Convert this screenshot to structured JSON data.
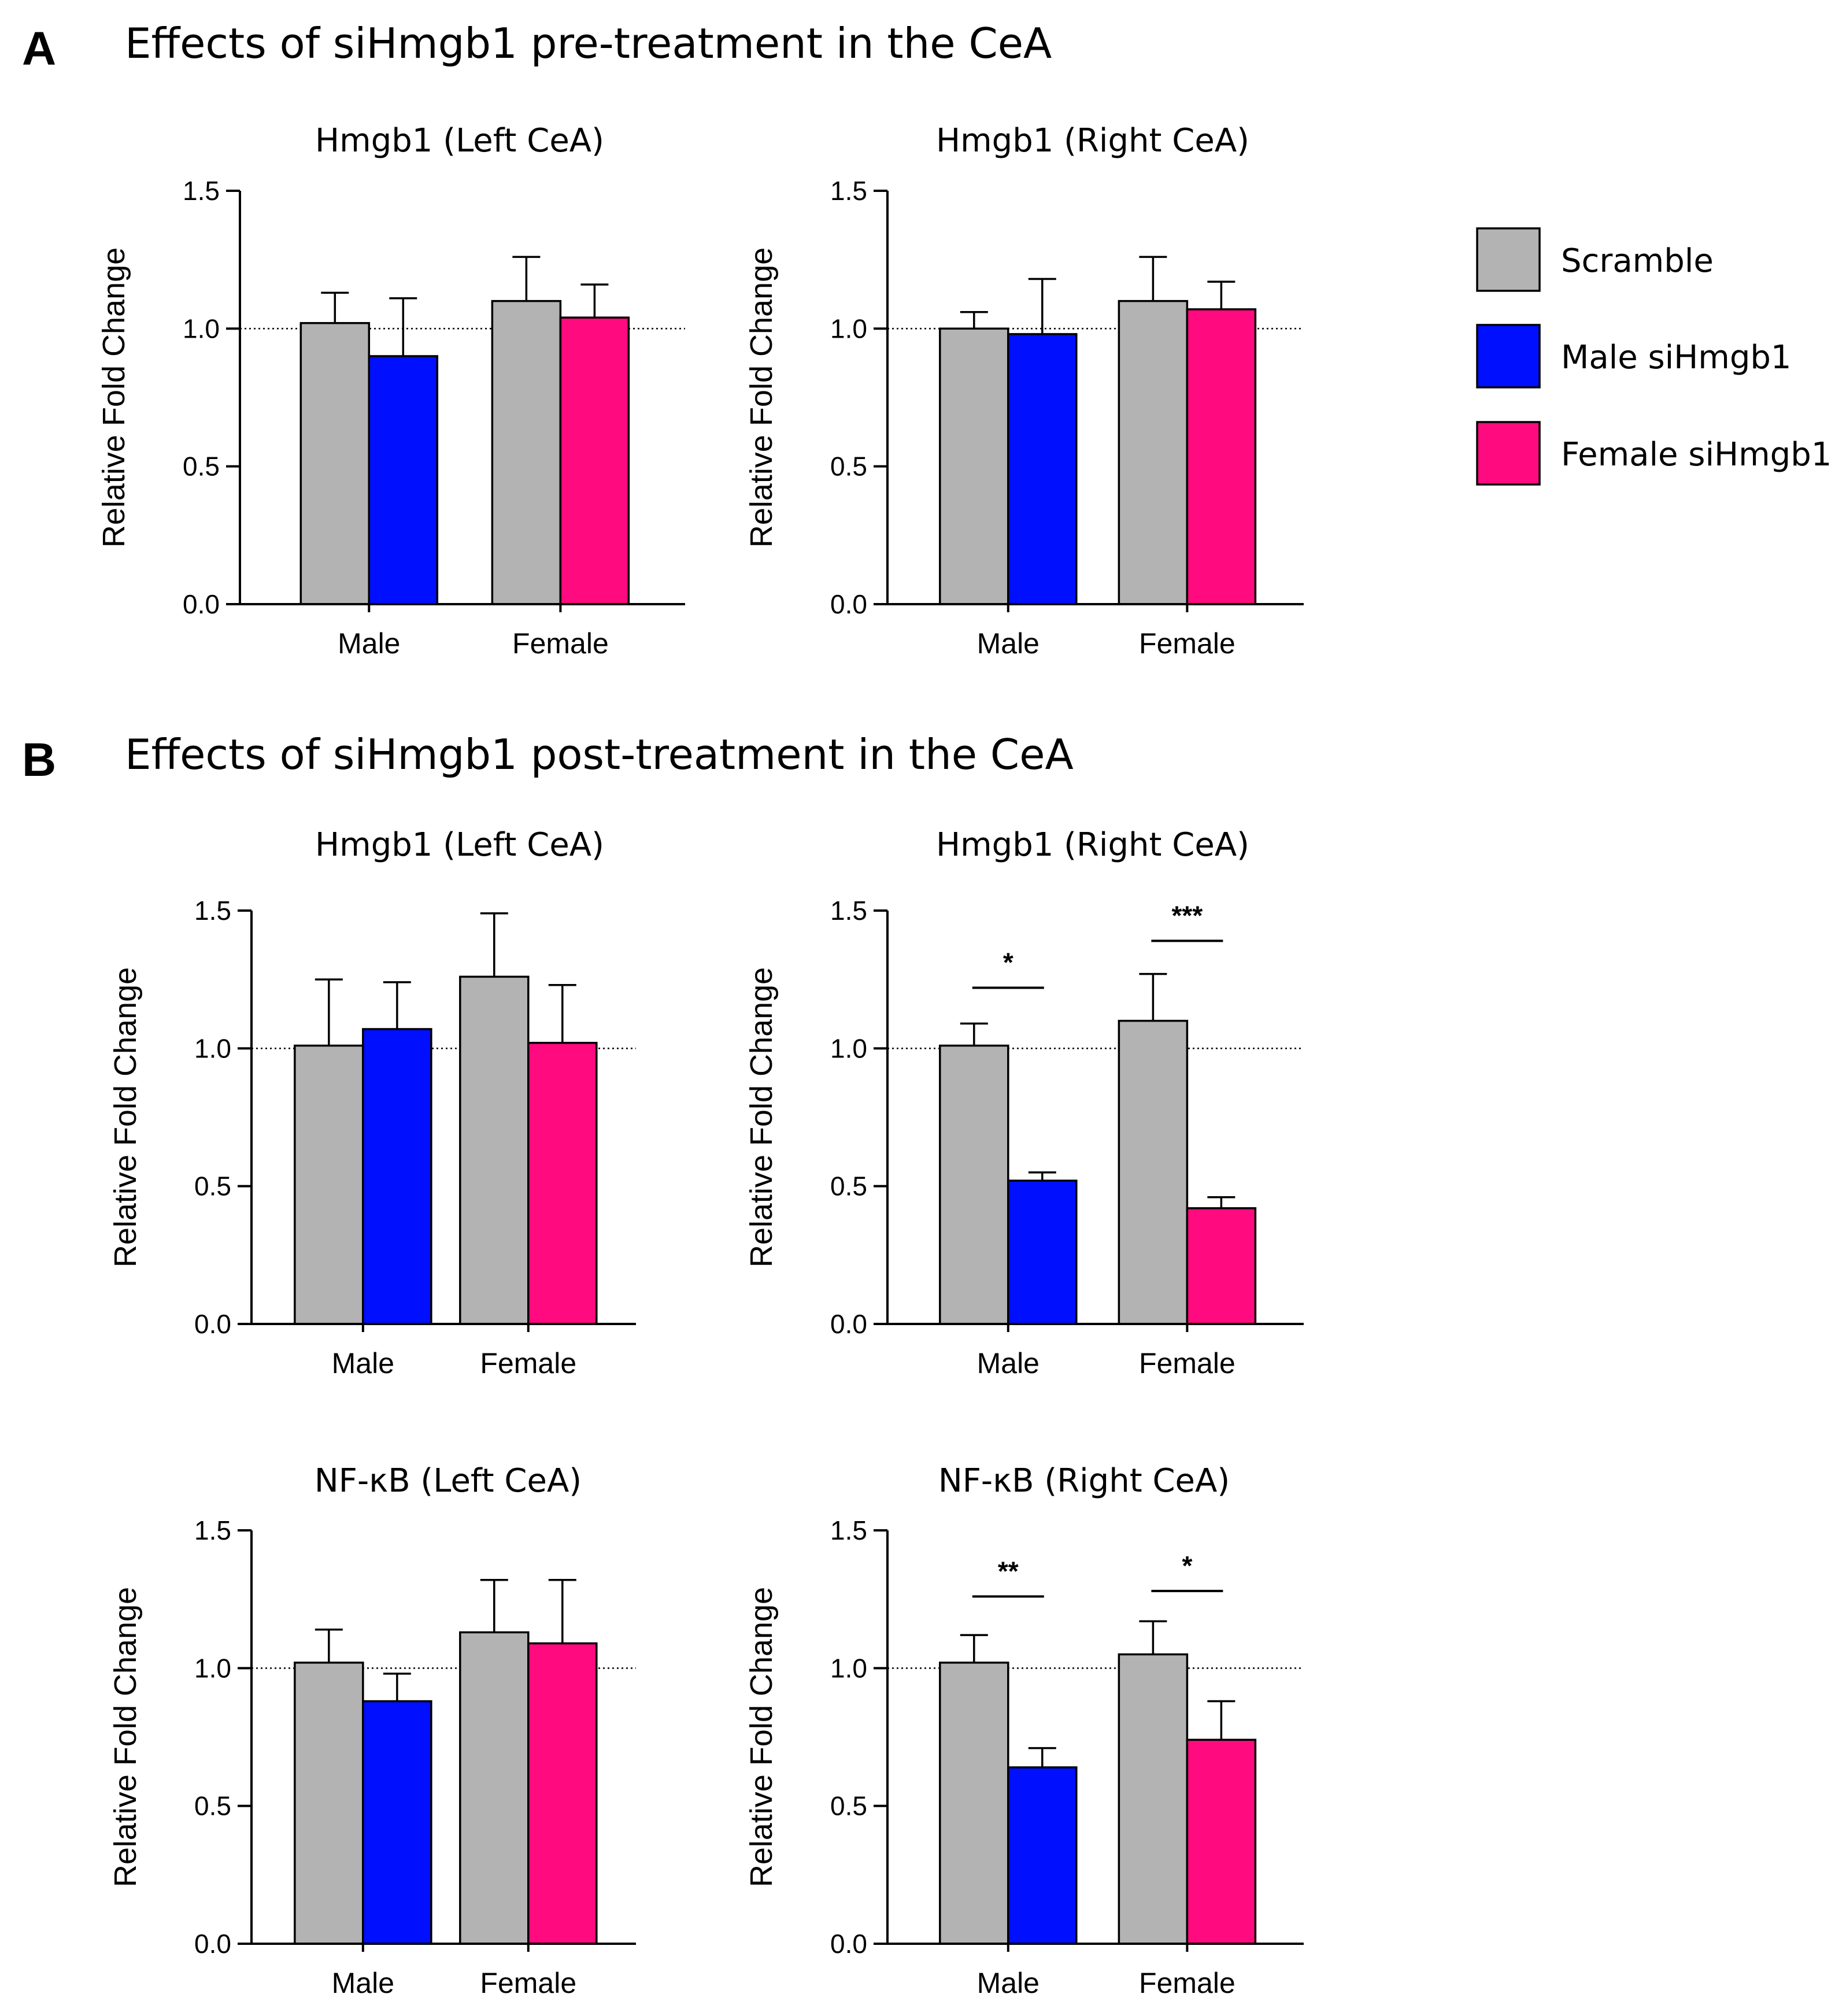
{
  "colors": {
    "scramble": "#b3b3b3",
    "male_sihmgb1": "#0010ff",
    "female_sihmgb1": "#ff0a7f"
  },
  "sections": {
    "A": {
      "letter": "A",
      "title": "Effects of siHmgb1 pre-treatment in the CeA"
    },
    "B": {
      "letter": "B",
      "title": "Effects of siHmgb1 post-treatment in the CeA"
    }
  },
  "legend": [
    {
      "label": "Scramble",
      "color_key": "scramble"
    },
    {
      "label": "Male siHmgb1",
      "color_key": "male_sihmgb1"
    },
    {
      "label": "Female siHmgb1",
      "color_key": "female_sihmgb1"
    }
  ],
  "chart_data": [
    {
      "id": "A-left",
      "type": "bar",
      "title": "Hmgb1 (Left CeA)",
      "ylabel": "Relative Fold Change",
      "xlabel": "",
      "ylim": [
        0,
        1.5
      ],
      "yticks": [
        "0.0",
        "0.5",
        "1.0",
        "1.5"
      ],
      "reference_line": 1.0,
      "categories": [
        "Male",
        "Female"
      ],
      "groups": [
        {
          "bars": [
            {
              "series": "Scramble",
              "color_key": "scramble",
              "value": 1.02,
              "error": 0.11
            },
            {
              "series": "siHmgb1",
              "color_key": "male_sihmgb1",
              "value": 0.9,
              "error": 0.21
            }
          ]
        },
        {
          "bars": [
            {
              "series": "Scramble",
              "color_key": "scramble",
              "value": 1.1,
              "error": 0.16
            },
            {
              "series": "siHmgb1",
              "color_key": "female_sihmgb1",
              "value": 1.04,
              "error": 0.12
            }
          ]
        }
      ],
      "significance": []
    },
    {
      "id": "A-right",
      "type": "bar",
      "title": "Hmgb1 (Right CeA)",
      "ylabel": "Relative Fold Change",
      "xlabel": "",
      "ylim": [
        0,
        1.5
      ],
      "yticks": [
        "0.0",
        "0.5",
        "1.0",
        "1.5"
      ],
      "reference_line": 1.0,
      "categories": [
        "Male",
        "Female"
      ],
      "groups": [
        {
          "bars": [
            {
              "series": "Scramble",
              "color_key": "scramble",
              "value": 1.0,
              "error": 0.06
            },
            {
              "series": "siHmgb1",
              "color_key": "male_sihmgb1",
              "value": 0.98,
              "error": 0.2
            }
          ]
        },
        {
          "bars": [
            {
              "series": "Scramble",
              "color_key": "scramble",
              "value": 1.1,
              "error": 0.16
            },
            {
              "series": "siHmgb1",
              "color_key": "female_sihmgb1",
              "value": 1.07,
              "error": 0.1
            }
          ]
        }
      ],
      "significance": []
    },
    {
      "id": "B-hmgb1-left",
      "type": "bar",
      "title": "Hmgb1 (Left CeA)",
      "ylabel": "Relative Fold Change",
      "xlabel": "",
      "ylim": [
        0,
        1.5
      ],
      "yticks": [
        "0.0",
        "0.5",
        "1.0",
        "1.5"
      ],
      "reference_line": 1.0,
      "categories": [
        "Male",
        "Female"
      ],
      "groups": [
        {
          "bars": [
            {
              "series": "Scramble",
              "color_key": "scramble",
              "value": 1.01,
              "error": 0.24
            },
            {
              "series": "siHmgb1",
              "color_key": "male_sihmgb1",
              "value": 1.07,
              "error": 0.17
            }
          ]
        },
        {
          "bars": [
            {
              "series": "Scramble",
              "color_key": "scramble",
              "value": 1.26,
              "error": 0.23
            },
            {
              "series": "siHmgb1",
              "color_key": "female_sihmgb1",
              "value": 1.02,
              "error": 0.21
            }
          ]
        }
      ],
      "significance": []
    },
    {
      "id": "B-hmgb1-right",
      "type": "bar",
      "title": "Hmgb1 (Right CeA)",
      "ylabel": "Relative Fold Change",
      "xlabel": "",
      "ylim": [
        0,
        1.5
      ],
      "yticks": [
        "0.0",
        "0.5",
        "1.0",
        "1.5"
      ],
      "reference_line": 1.0,
      "categories": [
        "Male",
        "Female"
      ],
      "groups": [
        {
          "bars": [
            {
              "series": "Scramble",
              "color_key": "scramble",
              "value": 1.01,
              "error": 0.08
            },
            {
              "series": "siHmgb1",
              "color_key": "male_sihmgb1",
              "value": 0.52,
              "error": 0.03
            }
          ]
        },
        {
          "bars": [
            {
              "series": "Scramble",
              "color_key": "scramble",
              "value": 1.1,
              "error": 0.17
            },
            {
              "series": "siHmgb1",
              "color_key": "female_sihmgb1",
              "value": 0.42,
              "error": 0.04
            }
          ]
        }
      ],
      "significance": [
        {
          "group": 0,
          "label": "*",
          "y": 1.22
        },
        {
          "group": 1,
          "label": "***",
          "y": 1.39
        }
      ]
    },
    {
      "id": "B-nfkb-left",
      "type": "bar",
      "title": "NF-κB (Left CeA)",
      "ylabel": "Relative Fold Change",
      "xlabel": "",
      "ylim": [
        0,
        1.5
      ],
      "yticks": [
        "0.0",
        "0.5",
        "1.0",
        "1.5"
      ],
      "reference_line": 1.0,
      "categories": [
        "Male",
        "Female"
      ],
      "groups": [
        {
          "bars": [
            {
              "series": "Scramble",
              "color_key": "scramble",
              "value": 1.02,
              "error": 0.12
            },
            {
              "series": "siHmgb1",
              "color_key": "male_sihmgb1",
              "value": 0.88,
              "error": 0.1
            }
          ]
        },
        {
          "bars": [
            {
              "series": "Scramble",
              "color_key": "scramble",
              "value": 1.13,
              "error": 0.19
            },
            {
              "series": "siHmgb1",
              "color_key": "female_sihmgb1",
              "value": 1.09,
              "error": 0.23
            }
          ]
        }
      ],
      "significance": []
    },
    {
      "id": "B-nfkb-right",
      "type": "bar",
      "title": "NF-κB (Right CeA)",
      "ylabel": "Relative Fold Change",
      "xlabel": "",
      "ylim": [
        0,
        1.5
      ],
      "yticks": [
        "0.0",
        "0.5",
        "1.0",
        "1.5"
      ],
      "reference_line": 1.0,
      "categories": [
        "Male",
        "Female"
      ],
      "groups": [
        {
          "bars": [
            {
              "series": "Scramble",
              "color_key": "scramble",
              "value": 1.02,
              "error": 0.1
            },
            {
              "series": "siHmgb1",
              "color_key": "male_sihmgb1",
              "value": 0.64,
              "error": 0.07
            }
          ]
        },
        {
          "bars": [
            {
              "series": "Scramble",
              "color_key": "scramble",
              "value": 1.05,
              "error": 0.12
            },
            {
              "series": "siHmgb1",
              "color_key": "female_sihmgb1",
              "value": 0.74,
              "error": 0.14
            }
          ]
        }
      ],
      "significance": [
        {
          "group": 0,
          "label": "**",
          "y": 1.26
        },
        {
          "group": 1,
          "label": "*",
          "y": 1.28
        }
      ]
    }
  ]
}
